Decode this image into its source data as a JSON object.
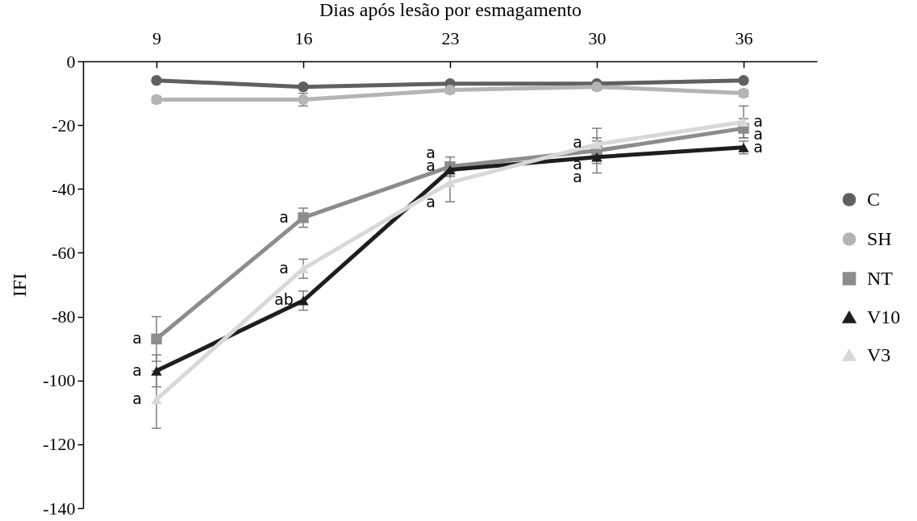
{
  "chart_data": {
    "type": "line",
    "xlabel": "Dias após lesão por esmagamento",
    "ylabel": "IFI",
    "categories": [
      "9",
      "16",
      "23",
      "30",
      "36"
    ],
    "ylim": [
      -140,
      0
    ],
    "yticks": [
      -140,
      -120,
      -100,
      -80,
      -60,
      -40,
      -20,
      0
    ],
    "legend": "right",
    "series": [
      {
        "name": "C",
        "color": "#606060",
        "marker": "circle",
        "values": [
          -6,
          -8,
          -7,
          -7,
          -6
        ]
      },
      {
        "name": "SH",
        "color": "#b4b4b4",
        "marker": "circle",
        "values": [
          -12,
          -12,
          -9,
          -8,
          -10
        ],
        "errors": [
          1,
          2,
          1,
          1,
          1
        ]
      },
      {
        "name": "NT",
        "color": "#8c8c8c",
        "marker": "square",
        "values": [
          -87,
          -49,
          -33,
          -28,
          -21
        ],
        "errors": [
          7,
          3,
          3,
          4,
          3
        ]
      },
      {
        "name": "V10",
        "color": "#1e1e1e",
        "marker": "triangle",
        "values": [
          -97,
          -75,
          -34,
          -30,
          -27
        ],
        "errors": [
          5,
          3,
          2,
          5,
          2
        ]
      },
      {
        "name": "V3",
        "color": "#d8d8d8",
        "marker": "triangle",
        "values": [
          -106,
          -65,
          -38,
          -26,
          -19
        ],
        "errors": [
          9,
          3,
          6,
          5,
          5
        ]
      }
    ],
    "annotations": [
      {
        "text": "a",
        "x": "9",
        "y": -87
      },
      {
        "text": "a",
        "x": "9",
        "y": -97
      },
      {
        "text": "a",
        "x": "9",
        "y": -106
      },
      {
        "text": "a",
        "x": "16",
        "y": -49
      },
      {
        "text": "a",
        "x": "16",
        "y": -65
      },
      {
        "text": "ab",
        "x": "16",
        "y": -75
      },
      {
        "text": "a",
        "x": "23",
        "y": -33
      },
      {
        "text": "a",
        "x": "23",
        "y": -34
      },
      {
        "text": "a",
        "x": "23",
        "y": -38
      },
      {
        "text": "a",
        "x": "30",
        "y": -26
      },
      {
        "text": "a",
        "x": "30",
        "y": -28
      },
      {
        "text": "a",
        "x": "30",
        "y": -30
      },
      {
        "text": "a",
        "x": "36",
        "y": -19
      },
      {
        "text": "a",
        "x": "36",
        "y": -21
      },
      {
        "text": "a",
        "x": "36",
        "y": -27
      }
    ]
  }
}
